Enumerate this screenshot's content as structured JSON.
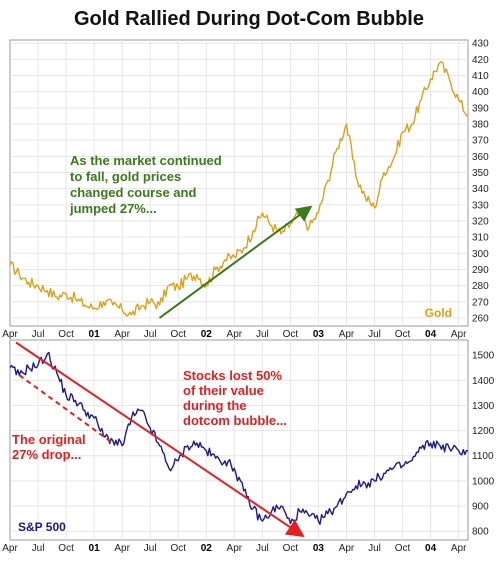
{
  "title": "Gold Rallied During Dot-Com Bubble",
  "colors": {
    "gold": "#d9a21b",
    "sp500": "#1a1a8c",
    "green_arrow": "#3a7a1a",
    "red": "#e51f1f",
    "grid": "#e6e6e6"
  },
  "chart_data": [
    {
      "type": "line",
      "series_label": "Gold",
      "ylim": [
        255,
        432
      ],
      "yticks": [
        260,
        270,
        280,
        290,
        300,
        310,
        320,
        330,
        340,
        350,
        360,
        370,
        380,
        390,
        400,
        410,
        420,
        430
      ],
      "xticks": [
        "Apr",
        "Jul",
        "Oct",
        "01",
        "Apr",
        "Jul",
        "Oct",
        "02",
        "Apr",
        "Jul",
        "Oct",
        "03",
        "Apr",
        "Jul",
        "Oct",
        "04",
        "Apr"
      ],
      "xrange_months": [
        0,
        49
      ],
      "points": [
        [
          0,
          293
        ],
        [
          1,
          287
        ],
        [
          2,
          282
        ],
        [
          3,
          280
        ],
        [
          4,
          277
        ],
        [
          5,
          273
        ],
        [
          6,
          275
        ],
        [
          7,
          272
        ],
        [
          8,
          268
        ],
        [
          9,
          266
        ],
        [
          10,
          270
        ],
        [
          11,
          268
        ],
        [
          12,
          265
        ],
        [
          13,
          262
        ],
        [
          14,
          267
        ],
        [
          15,
          270
        ],
        [
          16,
          268
        ],
        [
          17,
          280
        ],
        [
          18,
          279
        ],
        [
          19,
          285
        ],
        [
          20,
          287
        ],
        [
          21,
          280
        ],
        [
          22,
          290
        ],
        [
          23,
          296
        ],
        [
          24,
          298
        ],
        [
          25,
          303
        ],
        [
          26,
          314
        ],
        [
          27,
          325
        ],
        [
          28,
          317
        ],
        [
          29,
          312
        ],
        [
          30,
          318
        ],
        [
          31,
          325
        ],
        [
          32,
          316
        ],
        [
          33,
          325
        ],
        [
          34,
          345
        ],
        [
          35,
          365
        ],
        [
          36,
          380
        ],
        [
          37,
          348
        ],
        [
          38,
          335
        ],
        [
          39,
          328
        ],
        [
          40,
          350
        ],
        [
          41,
          358
        ],
        [
          42,
          375
        ],
        [
          43,
          380
        ],
        [
          44,
          395
        ],
        [
          45,
          408
        ],
        [
          46,
          418
        ],
        [
          47,
          408
        ],
        [
          48,
          395
        ],
        [
          49,
          385
        ]
      ],
      "annotation": [
        "As the market continued",
        "to fall, gold prices",
        "changed course and",
        "jumped 27%..."
      ],
      "arrow": {
        "from": [
          16,
          260
        ],
        "to": [
          32,
          328
        ]
      }
    },
    {
      "type": "line",
      "series_label": "S&P 500",
      "ylim": [
        765,
        1560
      ],
      "yticks": [
        800,
        900,
        1000,
        1100,
        1200,
        1300,
        1400,
        1500
      ],
      "xticks": [
        "Apr",
        "Jul",
        "Oct",
        "01",
        "Apr",
        "Jul",
        "Oct",
        "02",
        "Apr",
        "Jul",
        "Oct",
        "03",
        "Apr",
        "Jul",
        "Oct",
        "04",
        "Apr"
      ],
      "xrange_months": [
        0,
        49
      ],
      "points": [
        [
          0,
          1450
        ],
        [
          1,
          1420
        ],
        [
          2,
          1450
        ],
        [
          3,
          1460
        ],
        [
          4,
          1505
        ],
        [
          5,
          1430
        ],
        [
          6,
          1340
        ],
        [
          7,
          1320
        ],
        [
          8,
          1280
        ],
        [
          9,
          1250
        ],
        [
          10,
          1180
        ],
        [
          11,
          1160
        ],
        [
          12,
          1140
        ],
        [
          13,
          1250
        ],
        [
          14,
          1280
        ],
        [
          15,
          1210
        ],
        [
          16,
          1140
        ],
        [
          17,
          1050
        ],
        [
          18,
          1080
        ],
        [
          19,
          1140
        ],
        [
          20,
          1150
        ],
        [
          21,
          1120
        ],
        [
          22,
          1090
        ],
        [
          23,
          1080
        ],
        [
          24,
          1050
        ],
        [
          25,
          960
        ],
        [
          26,
          890
        ],
        [
          27,
          840
        ],
        [
          28,
          880
        ],
        [
          29,
          900
        ],
        [
          30,
          830
        ],
        [
          31,
          880
        ],
        [
          32,
          860
        ],
        [
          33,
          840
        ],
        [
          34,
          870
        ],
        [
          35,
          900
        ],
        [
          36,
          950
        ],
        [
          37,
          980
        ],
        [
          38,
          990
        ],
        [
          39,
          1000
        ],
        [
          40,
          1030
        ],
        [
          41,
          1050
        ],
        [
          42,
          1060
        ],
        [
          43,
          1080
        ],
        [
          44,
          1130
        ],
        [
          45,
          1150
        ],
        [
          46,
          1140
        ],
        [
          47,
          1130
        ],
        [
          48,
          1120
        ],
        [
          49,
          1120
        ]
      ],
      "annotation_main": [
        "Stocks lost 50%",
        "of their value",
        "during the",
        "dotcom bubble..."
      ],
      "annotation_drop": [
        "The original",
        "27% drop..."
      ],
      "arrow": {
        "from": [
          0,
          1550
        ],
        "to": [
          31,
          790
        ]
      },
      "dashed_arrow": {
        "from": [
          1,
          1420
        ],
        "to": [
          11,
          1150
        ]
      }
    }
  ]
}
